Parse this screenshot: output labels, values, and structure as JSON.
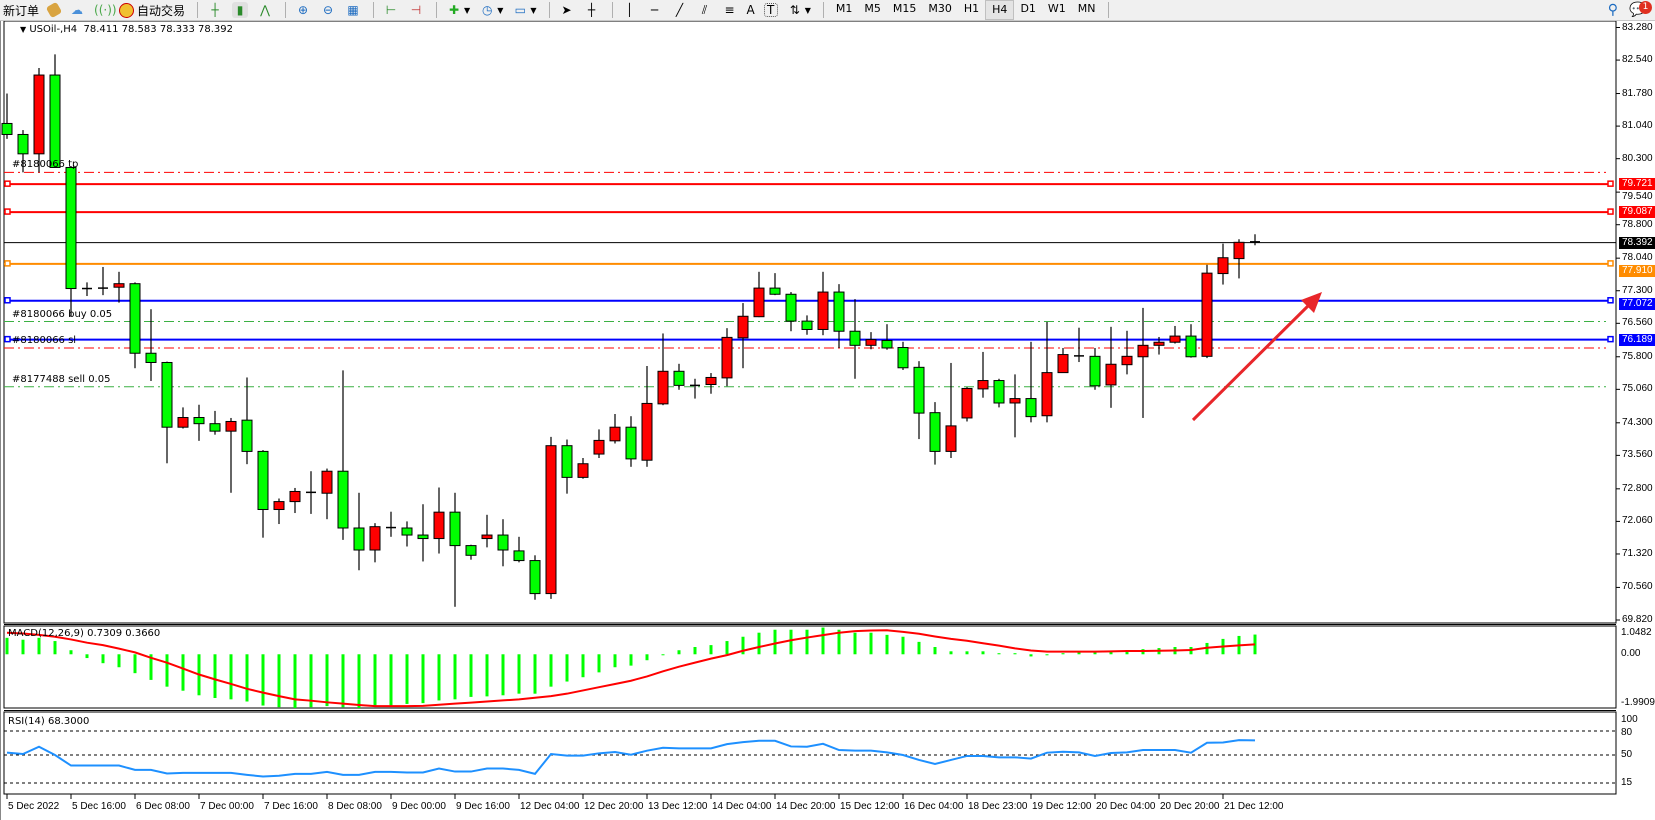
{
  "toolbar": {
    "new_order": "新订单",
    "auto_trade": "自动交易",
    "timeframes": [
      "M1",
      "M5",
      "M15",
      "M30",
      "H1",
      "H4",
      "D1",
      "W1",
      "MN"
    ],
    "active_timeframe": "H4",
    "text_tool": "A",
    "notification_count": "1"
  },
  "chart_header": {
    "symbol": "USOil-,H4",
    "open": "78.411",
    "high": "78.583",
    "low": "78.333",
    "close": "78.392"
  },
  "colors": {
    "bull": "#ff0000",
    "bear": "#00ff00",
    "wick": "#000000",
    "macd_hist": "#00ff00",
    "macd_signal": "#ff0000",
    "rsi": "#1e90ff",
    "arrow": "#e8262a"
  },
  "price_axis": [
    "83.280",
    "82.540",
    "81.780",
    "81.040",
    "80.300",
    "79.540",
    "78.800",
    "78.040",
    "77.300",
    "76.560",
    "75.800",
    "75.060",
    "74.300",
    "73.560",
    "72.800",
    "72.060",
    "71.320",
    "70.560",
    "69.820"
  ],
  "price_levels": [
    {
      "label": "79.721",
      "color": "#ff0000",
      "kind": "line"
    },
    {
      "label": "79.087",
      "color": "#ff0000",
      "kind": "line"
    },
    {
      "label": "78.392",
      "color": "#000000",
      "kind": "bid"
    },
    {
      "label": "77.910",
      "color": "#ff8c00",
      "kind": "line"
    },
    {
      "label": "77.072",
      "color": "#0000ff",
      "kind": "line"
    },
    {
      "label": "76.189",
      "color": "#0000ff",
      "kind": "line"
    }
  ],
  "trade_lines": [
    {
      "label": "#8180066 tp",
      "price": 79.99,
      "color": "#ff0000"
    },
    {
      "label": "#8180066 buy 0.05",
      "price": 76.6,
      "color": "#3cb043"
    },
    {
      "label": "#8180066 sl",
      "price": 76.0,
      "color": "#ff0000"
    },
    {
      "label": "#8177488 sell 0.05",
      "price": 75.12,
      "color": "#3cb043"
    }
  ],
  "x_axis_labels": [
    "5 Dec 2022",
    "5 Dec 16:00",
    "6 Dec 08:00",
    "7 Dec 00:00",
    "7 Dec 16:00",
    "8 Dec 08:00",
    "9 Dec 00:00",
    "9 Dec 16:00",
    "12 Dec 04:00",
    "12 Dec 20:00",
    "13 Dec 12:00",
    "14 Dec 04:00",
    "14 Dec 20:00",
    "15 Dec 12:00",
    "16 Dec 04:00",
    "18 Dec 23:00",
    "19 Dec 12:00",
    "20 Dec 04:00",
    "20 Dec 20:00",
    "21 Dec 12:00"
  ],
  "macd": {
    "label": "MACD(12,26,9) 0.7309 0.3660",
    "axis": [
      "1.0482",
      "0.00",
      "-1.9909"
    ]
  },
  "rsi": {
    "label": "RSI(14) 68.3000",
    "axis": [
      "100",
      "80",
      "50",
      "15"
    ]
  },
  "chart_data": [
    {
      "type": "candlestick",
      "title": "USOil-,H4",
      "ylim": [
        69.82,
        83.28
      ],
      "grid": false,
      "ohlc": [
        [
          81.1,
          81.78,
          80.75,
          80.85
        ],
        [
          80.85,
          80.95,
          79.99,
          80.41
        ],
        [
          80.41,
          82.36,
          79.99,
          82.2
        ],
        [
          82.2,
          82.67,
          80.1,
          80.1
        ],
        [
          80.1,
          80.12,
          76.72,
          77.35
        ],
        [
          77.35,
          77.49,
          77.18,
          77.35
        ],
        [
          77.36,
          77.84,
          77.2,
          77.36
        ],
        [
          77.38,
          77.73,
          77.03,
          77.46
        ],
        [
          77.46,
          77.49,
          75.54,
          75.88
        ],
        [
          75.88,
          76.88,
          75.25,
          75.67
        ],
        [
          75.67,
          75.69,
          73.38,
          74.2
        ],
        [
          74.2,
          74.65,
          74.17,
          74.42
        ],
        [
          74.42,
          74.71,
          73.89,
          74.28
        ],
        [
          74.28,
          74.57,
          74.03,
          74.11
        ],
        [
          74.11,
          74.41,
          72.71,
          74.33
        ],
        [
          74.36,
          75.33,
          73.36,
          73.65
        ],
        [
          73.65,
          73.68,
          71.69,
          72.33
        ],
        [
          72.33,
          72.58,
          72.0,
          72.51
        ],
        [
          72.51,
          72.82,
          72.25,
          72.74
        ],
        [
          72.72,
          73.2,
          72.23,
          72.7
        ],
        [
          72.7,
          73.26,
          72.11,
          73.2
        ],
        [
          73.2,
          75.49,
          71.64,
          71.91
        ],
        [
          71.91,
          72.71,
          70.95,
          71.41
        ],
        [
          71.41,
          72.02,
          71.13,
          71.94
        ],
        [
          71.92,
          72.28,
          71.71,
          71.92
        ],
        [
          71.91,
          72.06,
          71.49,
          71.75
        ],
        [
          71.75,
          72.45,
          71.15,
          71.67
        ],
        [
          71.67,
          72.83,
          71.33,
          72.27
        ],
        [
          72.27,
          72.71,
          70.12,
          71.51
        ],
        [
          71.51,
          71.53,
          71.19,
          71.29
        ],
        [
          71.67,
          72.21,
          71.47,
          71.75
        ],
        [
          71.75,
          72.11,
          71.04,
          71.41
        ],
        [
          71.39,
          71.71,
          71.13,
          71.17
        ],
        [
          71.17,
          71.29,
          70.28,
          70.42
        ],
        [
          70.42,
          73.98,
          70.3,
          73.78
        ],
        [
          73.78,
          73.92,
          72.69,
          73.06
        ],
        [
          73.06,
          73.5,
          73.03,
          73.37
        ],
        [
          73.59,
          74.15,
          73.5,
          73.9
        ],
        [
          73.89,
          74.5,
          73.83,
          74.2
        ],
        [
          74.2,
          74.45,
          73.3,
          73.48
        ],
        [
          73.45,
          75.59,
          73.3,
          74.74
        ],
        [
          74.73,
          76.33,
          74.7,
          75.47
        ],
        [
          75.47,
          75.64,
          75.05,
          75.15
        ],
        [
          75.15,
          75.3,
          74.85,
          75.15
        ],
        [
          75.17,
          75.43,
          74.96,
          75.33
        ],
        [
          75.32,
          76.45,
          75.13,
          76.24
        ],
        [
          76.23,
          77.02,
          75.54,
          76.72
        ],
        [
          76.71,
          77.73,
          76.7,
          77.36
        ],
        [
          77.36,
          77.7,
          77.2,
          77.22
        ],
        [
          77.22,
          77.27,
          76.38,
          76.61
        ],
        [
          76.61,
          76.74,
          76.3,
          76.42
        ],
        [
          76.42,
          77.73,
          76.29,
          77.27
        ],
        [
          77.27,
          77.45,
          76.0,
          76.38
        ],
        [
          76.38,
          77.11,
          75.3,
          76.06
        ],
        [
          76.06,
          76.36,
          75.97,
          76.19
        ],
        [
          76.17,
          76.54,
          75.96,
          76.0
        ],
        [
          76.01,
          76.14,
          75.5,
          75.55
        ],
        [
          75.56,
          75.7,
          73.93,
          74.52
        ],
        [
          74.53,
          74.77,
          73.35,
          73.65
        ],
        [
          73.65,
          75.66,
          73.5,
          74.23
        ],
        [
          74.41,
          75.11,
          74.33,
          75.08
        ],
        [
          75.07,
          75.91,
          74.87,
          75.26
        ],
        [
          75.26,
          75.3,
          74.65,
          74.75
        ],
        [
          74.75,
          75.4,
          73.97,
          74.85
        ],
        [
          74.85,
          76.14,
          74.31,
          74.44
        ],
        [
          74.46,
          76.59,
          74.31,
          75.44
        ],
        [
          75.44,
          76.0,
          75.44,
          75.85
        ],
        [
          75.82,
          76.46,
          75.68,
          75.82
        ],
        [
          75.81,
          76.0,
          75.05,
          75.14
        ],
        [
          75.16,
          76.48,
          74.64,
          75.63
        ],
        [
          75.62,
          76.39,
          75.4,
          75.81
        ],
        [
          75.8,
          76.91,
          74.41,
          76.06
        ],
        [
          76.06,
          76.25,
          75.85,
          76.13
        ],
        [
          76.13,
          76.5,
          76.1,
          76.27
        ],
        [
          76.27,
          76.54,
          75.78,
          75.8
        ],
        [
          75.81,
          77.89,
          75.77,
          77.7
        ],
        [
          77.69,
          78.37,
          77.44,
          78.05
        ],
        [
          78.03,
          78.47,
          77.58,
          78.4
        ],
        [
          78.411,
          78.583,
          78.333,
          78.392
        ]
      ]
    },
    {
      "type": "bar",
      "title": "MACD(12,26,9)",
      "ylim": [
        -1.9909,
        1.0482
      ],
      "series": [
        {
          "name": "MACD",
          "values": [
            0.61,
            0.54,
            0.61,
            0.49,
            0.15,
            -0.14,
            -0.33,
            -0.48,
            -0.7,
            -0.95,
            -1.2,
            -1.35,
            -1.52,
            -1.62,
            -1.67,
            -1.75,
            -1.9,
            -1.96,
            -1.99,
            -1.96,
            -1.92,
            -1.96,
            -1.99,
            -1.92,
            -1.92,
            -1.84,
            -1.81,
            -1.71,
            -1.67,
            -1.58,
            -1.56,
            -1.52,
            -1.46,
            -1.46,
            -1.2,
            -1.01,
            -0.85,
            -0.67,
            -0.48,
            -0.42,
            -0.22,
            -0.03,
            0.15,
            0.27,
            0.34,
            0.49,
            0.65,
            0.8,
            0.91,
            0.91,
            0.91,
            0.99,
            0.91,
            0.8,
            0.8,
            0.72,
            0.65,
            0.46,
            0.27,
            0.11,
            0.11,
            0.11,
            0.04,
            0.04,
            -0.08,
            -0.01,
            0.04,
            0.08,
            0.08,
            0.11,
            0.15,
            0.19,
            0.23,
            0.27,
            0.27,
            0.42,
            0.57,
            0.68,
            0.7309
          ]
        },
        {
          "name": "Signal",
          "values": [
            0.8,
            0.77,
            0.72,
            0.65,
            0.55,
            0.43,
            0.34,
            0.21,
            0.07,
            -0.13,
            -0.31,
            -0.53,
            -0.75,
            -0.93,
            -1.1,
            -1.28,
            -1.42,
            -1.55,
            -1.67,
            -1.72,
            -1.78,
            -1.83,
            -1.88,
            -1.92,
            -1.92,
            -1.92,
            -1.91,
            -1.87,
            -1.83,
            -1.79,
            -1.75,
            -1.71,
            -1.67,
            -1.61,
            -1.55,
            -1.46,
            -1.34,
            -1.22,
            -1.1,
            -0.98,
            -0.82,
            -0.63,
            -0.46,
            -0.31,
            -0.16,
            -0.03,
            0.13,
            0.27,
            0.4,
            0.52,
            0.62,
            0.71,
            0.8,
            0.86,
            0.88,
            0.89,
            0.83,
            0.76,
            0.66,
            0.57,
            0.5,
            0.41,
            0.32,
            0.22,
            0.14,
            0.1,
            0.1,
            0.1,
            0.1,
            0.11,
            0.12,
            0.12,
            0.13,
            0.14,
            0.16,
            0.24,
            0.29,
            0.33,
            0.366
          ]
        }
      ]
    },
    {
      "type": "line",
      "title": "RSI(14)",
      "ylim": [
        0,
        100
      ],
      "levels": [
        80,
        50,
        15
      ],
      "values": [
        52.9,
        51.2,
        60.3,
        50.0,
        36.8,
        36.8,
        36.8,
        36.8,
        31.4,
        31.4,
        26.9,
        27.7,
        27.7,
        27.7,
        27.7,
        25.2,
        23.1,
        24.0,
        26.4,
        26.4,
        28.9,
        25.2,
        25.2,
        28.9,
        28.9,
        28.1,
        28.1,
        33.1,
        29.3,
        29.3,
        33.1,
        33.1,
        31.4,
        26.4,
        51.2,
        49.2,
        49.2,
        52.1,
        53.7,
        50.4,
        55.4,
        59.1,
        58.3,
        58.3,
        58.3,
        63.6,
        66.1,
        67.8,
        67.8,
        60.7,
        60.3,
        64.0,
        56.2,
        55.4,
        55.4,
        53.3,
        50.0,
        43.8,
        38.8,
        43.8,
        48.8,
        48.8,
        47.1,
        47.1,
        45.5,
        52.9,
        54.1,
        53.3,
        48.8,
        52.5,
        53.3,
        56.2,
        56.2,
        56.2,
        52.9,
        65.3,
        65.7,
        68.6,
        68.3
      ]
    }
  ]
}
